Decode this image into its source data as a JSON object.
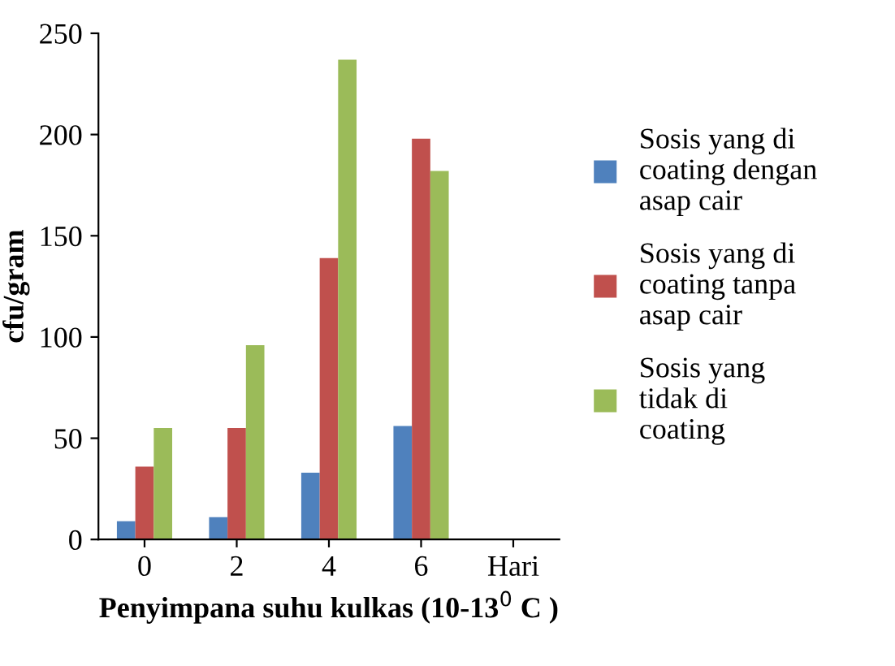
{
  "chart_data": {
    "type": "bar",
    "xlabel": "Penyimpana suhu kulkas (10-13$^{0}$ C )",
    "ylabel": "cfu/gram",
    "categories": [
      "0",
      "2",
      "4",
      "6",
      "Hari"
    ],
    "series": [
      {
        "name": "Sosis yang di coating dengan asap cair",
        "color": "#4f81bd",
        "values": [
          9,
          11,
          33,
          56,
          null
        ]
      },
      {
        "name": "Sosis yang di coating tanpa asap cair",
        "color": "#c0504d",
        "values": [
          36,
          55,
          139,
          198,
          null
        ]
      },
      {
        "name": "Sosis yang tidak di coating",
        "color": "#9bbb59",
        "values": [
          55,
          96,
          237,
          182,
          null
        ]
      }
    ],
    "ylim": [
      0,
      250
    ],
    "yticks": [
      0,
      50,
      100,
      150,
      200,
      250
    ],
    "grid": false,
    "legend": "right"
  }
}
